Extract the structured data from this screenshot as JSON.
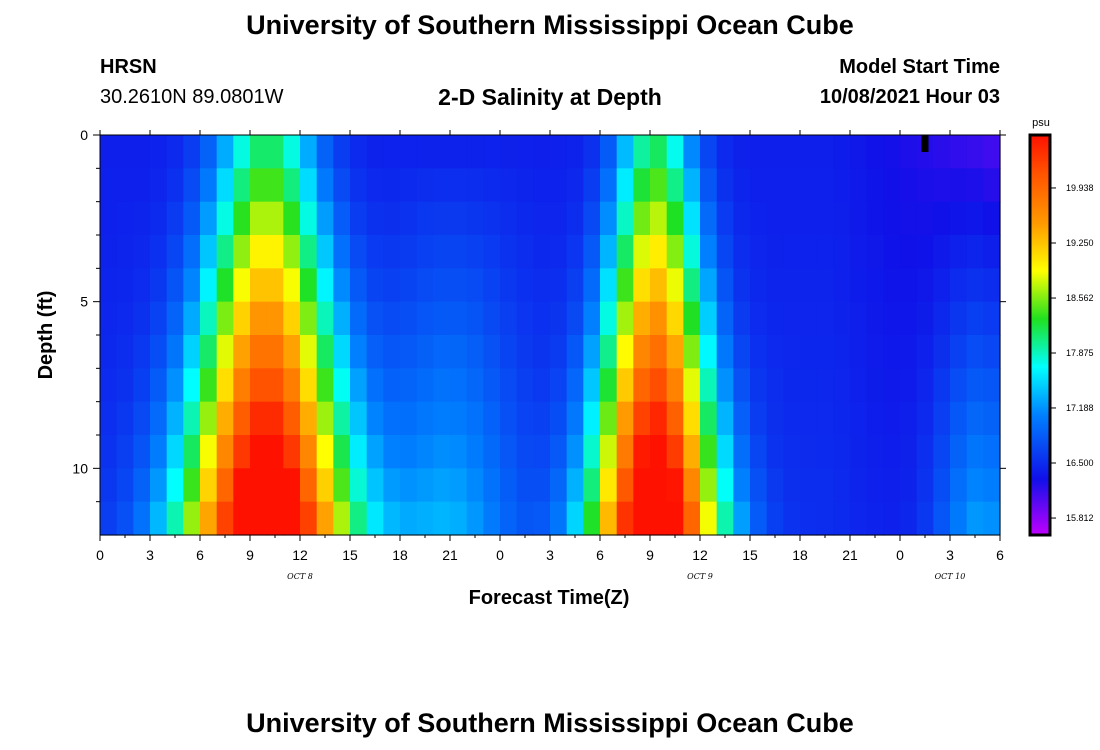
{
  "header": {
    "title": "University of Southern Mississippi Ocean Cube",
    "station": "HRSN",
    "coords": "30.2610N  89.0801W",
    "plot_title": "2-D Salinity at Depth",
    "model_label": "Model Start Time",
    "model_time": "10/08/2021 Hour 03"
  },
  "footer": {
    "title": "University of Southern Mississippi Ocean Cube"
  },
  "chart_data": {
    "type": "heatmap",
    "title": "2-D Salinity at Depth",
    "xlabel": "Forecast Time(Z)",
    "ylabel": "Depth (ft)",
    "x_start_hour": 0,
    "x_hours": 54,
    "x_tick_labels": [
      "0",
      "3",
      "6",
      "9",
      "12",
      "15",
      "18",
      "21",
      "0",
      "3",
      "6",
      "9",
      "12",
      "15",
      "18",
      "21",
      "0",
      "3",
      "6"
    ],
    "date_labels": [
      {
        "text": "OCT 8",
        "hour": 12
      },
      {
        "text": "OCT 9",
        "hour": 36
      },
      {
        "text": "OCT 10",
        "hour": 51
      }
    ],
    "y_range_ft": [
      0,
      12
    ],
    "y_tick_labels": [
      "0",
      "5",
      "10"
    ],
    "y_tick_values": [
      0,
      5,
      10
    ],
    "colorbar": {
      "unit": "psu",
      "min": 15.6,
      "max": 20.6,
      "ticks": [
        19.938,
        19.25,
        18.562,
        17.875,
        17.188,
        16.5,
        15.812
      ]
    },
    "marker_hour": 49.5,
    "depth_rows": 12,
    "hour_columns": 54
  }
}
